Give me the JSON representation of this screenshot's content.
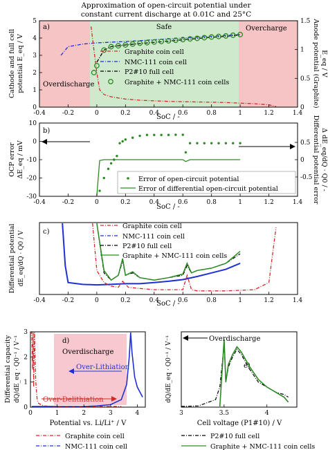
{
  "figure": {
    "title_line1": "Approximation of open-circuit potential under",
    "title_line2": "constant current discharge at 0.01C and 25°C"
  },
  "colors": {
    "graphite": "#d62728",
    "nmc": "#1f2fd6",
    "full": "#000000",
    "combined": "#2a8a22",
    "overcharge_bg": "#f6c4c4",
    "safe_bg": "#cfe9cd",
    "overdischarge_bg": "#f6c4c4",
    "panel_d_bg": "#f8c8d0",
    "blue_arrow": "#1f2fd6",
    "red_arrow": "#d62728"
  },
  "chart_data": [
    {
      "id": "a",
      "type": "line",
      "panel_label": "a)",
      "xlabel": "SoC / -",
      "ylabel": "Cathode and full cell potential E_eq / V",
      "ylabel_line1": "Cathode and full cell",
      "ylabel_line2": "potential E_eq / V",
      "y2label_line1": "Anode potential (Graphite)",
      "y2label_line2": "E_eq / V",
      "xlim": [
        -0.4,
        1.4
      ],
      "ylim": [
        0,
        5
      ],
      "y2lim": [
        0,
        1.5
      ],
      "x_ticks": [
        "-0.4",
        "-0.2",
        "0",
        "0.2",
        "0.4",
        "0.6",
        "0.8",
        "1",
        "1.2",
        "1.4"
      ],
      "y_ticks": [
        "0",
        "1",
        "2",
        "3",
        "4",
        "5"
      ],
      "y2_ticks": [
        "0",
        "0.5",
        "1",
        "1.5"
      ],
      "regions": [
        {
          "label": "Overdischarge",
          "from": -0.4,
          "to": 0
        },
        {
          "label": "Safe",
          "from": 0,
          "to": 1
        },
        {
          "label": "Overcharge",
          "from": 1,
          "to": 1.4
        }
      ],
      "legend": [
        "Graphite coin cell",
        "NMC-111 coin cell",
        "P2#10 full cell",
        "Graphite + NMC-111 coin cells"
      ],
      "series": [
        {
          "name": "NMC-111 coin cell",
          "x": [
            -0.25,
            -0.2,
            -0.1,
            0,
            0.1,
            0.2,
            0.3,
            0.4,
            0.5,
            0.6,
            0.7,
            0.8,
            0.9,
            1.0
          ],
          "y": [
            3.0,
            3.5,
            3.65,
            3.72,
            3.76,
            3.8,
            3.85,
            3.9,
            3.95,
            4.0,
            4.05,
            4.1,
            4.15,
            4.2
          ]
        },
        {
          "name": "Graphite coin cell",
          "x": [
            -0.04,
            -0.02,
            0,
            0.02,
            0.05,
            0.1,
            0.2,
            0.3,
            0.5,
            0.7,
            0.9,
            1.0,
            1.1,
            1.2,
            1.25
          ],
          "y2": [
            1.4,
            1.0,
            0.6,
            0.3,
            0.22,
            0.18,
            0.14,
            0.12,
            0.1,
            0.09,
            0.08,
            0.07,
            0.06,
            0.04,
            0.0
          ]
        },
        {
          "name": "P2#10 full cell",
          "x": [
            0.0,
            0.05,
            0.1,
            0.2,
            0.3,
            0.4,
            0.5,
            0.6,
            0.7,
            0.8,
            0.9,
            1.0
          ],
          "y": [
            2.6,
            3.3,
            3.5,
            3.6,
            3.68,
            3.75,
            3.82,
            3.9,
            3.97,
            4.04,
            4.1,
            4.18
          ]
        },
        {
          "name": "Graphite + NMC-111 coin cells",
          "x": [
            -0.02,
            0.0,
            0.05,
            0.1,
            0.15,
            0.2,
            0.25,
            0.3,
            0.35,
            0.4,
            0.45,
            0.5,
            0.55,
            0.6,
            0.65,
            0.7,
            0.75,
            0.8,
            0.85,
            0.9,
            0.95,
            1.0
          ],
          "y": [
            2.0,
            2.4,
            3.3,
            3.5,
            3.55,
            3.6,
            3.65,
            3.7,
            3.73,
            3.77,
            3.8,
            3.84,
            3.87,
            3.91,
            3.95,
            3.98,
            4.02,
            4.06,
            4.09,
            4.12,
            4.16,
            4.2
          ]
        }
      ]
    },
    {
      "id": "b",
      "type": "scatter",
      "panel_label": "b)",
      "xlabel": "SoC / -",
      "ylabel_line1": "OCP error",
      "ylabel_line2": "ΔE_eq / mV",
      "y2label_line1": "Differential potential error",
      "y2label_line2": "Δ dE_eq/dQ · Q0 / -",
      "xlim": [
        -0.4,
        1.4
      ],
      "ylim": [
        -30,
        10
      ],
      "x_ticks": [
        "-0.4",
        "-0.2",
        "0",
        "0.2",
        "0.4",
        "0.6",
        "0.8",
        "1",
        "1.2",
        "1.4"
      ],
      "y_ticks": [
        "-30",
        "-20",
        "-10",
        "0",
        "10"
      ],
      "y2_ticks": [
        "-0.5",
        "0",
        "0.5"
      ],
      "legend": [
        "Error of open-circuit potential",
        "Error of differential open-circuit potential"
      ],
      "series": [
        {
          "name": "Error of open-circuit potential",
          "x": [
            0.02,
            0.05,
            0.08,
            0.1,
            0.12,
            0.14,
            0.16,
            0.18,
            0.2,
            0.25,
            0.3,
            0.35,
            0.4,
            0.45,
            0.5,
            0.55,
            0.6,
            0.62,
            0.65,
            0.7,
            0.75,
            0.8,
            0.85,
            0.9,
            0.95,
            1.0
          ],
          "y": [
            -27,
            -20,
            -15,
            -12,
            -10,
            -8,
            -1,
            0,
            1,
            2,
            3,
            3.5,
            3.5,
            3.5,
            3.5,
            3.6,
            3.6,
            -6,
            -1,
            -1,
            -1,
            -1,
            -1,
            -1,
            -1,
            -1
          ]
        },
        {
          "name": "Error of differential open-circuit potential",
          "x": [
            0,
            0.02,
            0.05,
            0.1,
            0.15,
            0.2,
            0.3,
            0.4,
            0.5,
            0.6,
            0.62,
            0.65,
            0.7,
            0.8,
            0.9,
            1.0
          ],
          "y": [
            -30,
            -10.5,
            -10,
            -10,
            -10,
            -10,
            -10,
            -10,
            -10,
            -10,
            -11,
            -10,
            -10,
            -10,
            -10,
            -10
          ]
        }
      ]
    },
    {
      "id": "c",
      "type": "line",
      "panel_label": "c)",
      "xlabel": "SoC / -",
      "ylabel_line1": "Differential potential",
      "ylabel_line2": "dE_eq/dQ · Q0 / V",
      "xlim": [
        -0.4,
        1.4
      ],
      "ylim": [
        0,
        3
      ],
      "x_ticks": [
        "-0.4",
        "-0.2",
        "0",
        "0.2",
        "0.4",
        "0.6",
        "0.8",
        "1",
        "1.2",
        "1.4"
      ],
      "legend": [
        "Graphite coin cell",
        "NMC-111 coin cell",
        "P2#10 full cell",
        "Graphite + NMC-111 coin cells"
      ],
      "series": [
        {
          "name": "NMC-111 coin cell",
          "x": [
            -0.24,
            -0.22,
            -0.2,
            -0.1,
            0,
            0.1,
            0.2,
            0.3,
            0.4,
            0.5,
            0.6,
            0.7,
            0.8,
            0.9,
            1.0
          ],
          "y": [
            3.0,
            1.2,
            0.5,
            0.42,
            0.4,
            0.42,
            0.45,
            0.45,
            0.5,
            0.55,
            0.62,
            0.75,
            0.9,
            1.05,
            1.3
          ]
        },
        {
          "name": "Graphite coin cell",
          "x": [
            -0.03,
            0,
            0.05,
            0.1,
            0.15,
            0.18,
            0.22,
            0.3,
            0.4,
            0.5,
            0.6,
            0.63,
            0.66,
            0.7,
            0.9,
            1.1,
            1.2,
            1.25
          ],
          "y": [
            3.0,
            1.0,
            0.5,
            0.35,
            0.3,
            0.55,
            0.3,
            0.25,
            0.2,
            0.2,
            0.2,
            0.8,
            0.2,
            0.15,
            0.15,
            0.2,
            0.5,
            2.8
          ]
        },
        {
          "name": "P2#10 full cell",
          "x": [
            0,
            0.05,
            0.1,
            0.15,
            0.18,
            0.2,
            0.25,
            0.3,
            0.4,
            0.5,
            0.6,
            0.63,
            0.66,
            0.7,
            0.8,
            0.9,
            1.0
          ],
          "y": [
            3.0,
            0.9,
            0.6,
            0.8,
            1.4,
            0.8,
            0.9,
            0.7,
            0.6,
            0.7,
            0.8,
            1.2,
            0.9,
            1.0,
            1.1,
            1.3,
            1.7
          ]
        },
        {
          "name": "Graphite + NMC-111 coin cells",
          "x": [
            0,
            0.05,
            0.1,
            0.15,
            0.18,
            0.2,
            0.25,
            0.3,
            0.4,
            0.5,
            0.6,
            0.63,
            0.66,
            0.7,
            0.8,
            0.9,
            1.0
          ],
          "y": [
            3.0,
            1.0,
            0.6,
            0.8,
            1.5,
            0.8,
            0.95,
            0.7,
            0.6,
            0.7,
            0.85,
            1.3,
            0.9,
            1.0,
            1.1,
            1.3,
            1.8
          ]
        }
      ]
    },
    {
      "id": "d",
      "type": "line",
      "panel_label": "d)",
      "xlabel": "Potential vs. Li/Li⁺ / V",
      "ylabel_line1": "Differential capacity",
      "ylabel_line2": "dQ/dE_eq · Q0⁻¹ / V⁻¹",
      "xlim": [
        0,
        4.3
      ],
      "ylim": [
        0,
        3
      ],
      "x_ticks": [
        "0",
        "1",
        "2",
        "3",
        "4"
      ],
      "y_ticks": [
        "0",
        "1",
        "2",
        "3"
      ],
      "region_label": "Overdischarge",
      "arrow_labels": [
        "Over-Lithiation",
        "Over-Delithiation"
      ],
      "series": [
        {
          "name": "Graphite coin cell",
          "x": [
            0.0,
            0.05,
            0.08,
            0.1,
            0.12,
            0.15,
            0.2,
            0.25,
            0.3,
            0.5,
            1.0,
            2.0,
            3.0,
            3.4
          ],
          "y": [
            2.9,
            3.0,
            1.5,
            3.0,
            0.8,
            3.0,
            1.0,
            0.3,
            0.15,
            0.05,
            0.02,
            0.02,
            0.02,
            0.0
          ]
        },
        {
          "name": "NMC-111 coin cell",
          "x": [
            0.05,
            0.5,
            1.0,
            1.5,
            2.0,
            2.5,
            3.0,
            3.4,
            3.6,
            3.7,
            3.75,
            3.8,
            3.9,
            4.0,
            4.2
          ],
          "y": [
            0.02,
            0.02,
            0.02,
            0.02,
            0.03,
            0.05,
            0.1,
            0.3,
            0.9,
            2.0,
            3.0,
            2.2,
            1.2,
            0.8,
            0.4
          ]
        }
      ]
    },
    {
      "id": "e",
      "type": "line",
      "panel_label": "e)",
      "xlabel": "Cell voltage (P1#10) / V",
      "ylabel": "dQ/dE_eq · Q0⁻¹ / V⁻¹",
      "xlim": [
        3,
        4.35
      ],
      "ylim": [
        0,
        3
      ],
      "x_ticks": [
        "3",
        "3.5",
        "4"
      ],
      "annotation": "Overdischarge",
      "series": [
        {
          "name": "P2#10 full cell",
          "x": [
            3.0,
            3.2,
            3.4,
            3.45,
            3.5,
            3.52,
            3.55,
            3.6,
            3.65,
            3.7,
            3.75,
            3.8,
            3.9,
            4.0,
            4.1,
            4.2,
            4.25
          ],
          "y": [
            0.0,
            0.05,
            0.3,
            0.8,
            2.5,
            1.0,
            1.6,
            2.0,
            2.3,
            2.1,
            1.8,
            1.5,
            1.0,
            0.8,
            0.6,
            0.5,
            0.4
          ]
        },
        {
          "name": "Graphite + NMC-111 coin cells",
          "x": [
            3.45,
            3.5,
            3.52,
            3.55,
            3.6,
            3.65,
            3.7,
            3.75,
            3.8,
            3.9,
            4.0,
            4.1,
            4.2,
            4.25
          ],
          "y": [
            0.0,
            2.7,
            1.0,
            1.7,
            2.1,
            2.4,
            2.2,
            1.9,
            1.6,
            1.1,
            0.8,
            0.6,
            0.4,
            0.2
          ]
        }
      ]
    }
  ],
  "bottom_legend": {
    "left": [
      "Graphite coin cell",
      "NMC-111 coin cell"
    ],
    "right": [
      "P2#10 full cell",
      "Graphite + NMC-111 coin cells"
    ]
  }
}
